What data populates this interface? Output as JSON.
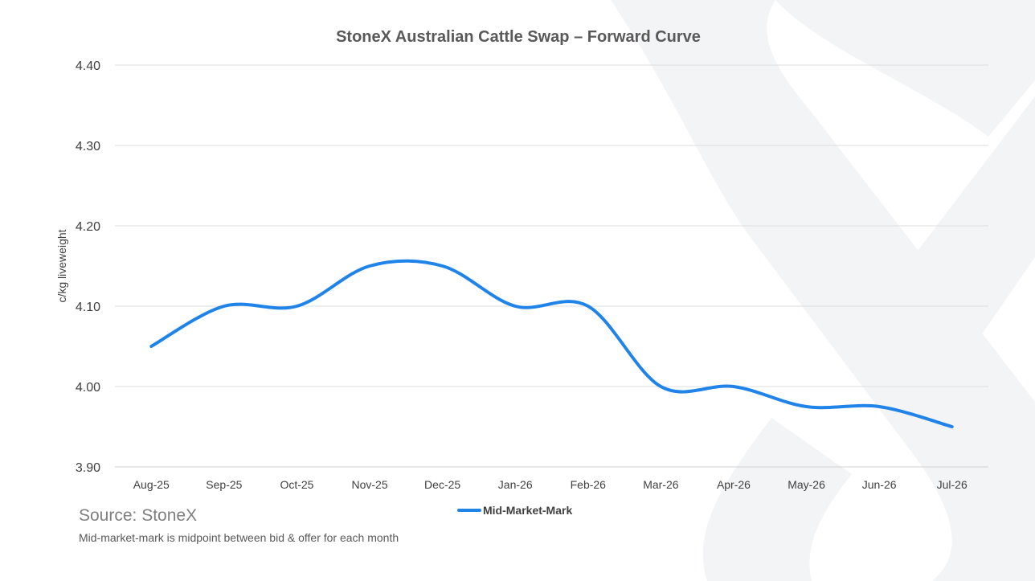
{
  "chart_data": {
    "type": "line",
    "title": "StoneX Australian Cattle Swap – Forward Curve",
    "xlabel": "",
    "ylabel": "c/kg liveweight",
    "categories": [
      "Aug-25",
      "Sep-25",
      "Oct-25",
      "Nov-25",
      "Dec-25",
      "Jan-26",
      "Feb-26",
      "Mar-26",
      "Apr-26",
      "May-26",
      "Jun-26",
      "Jul-26"
    ],
    "series": [
      {
        "name": "Mid-Market-Mark",
        "values": [
          4.05,
          4.1,
          4.1,
          4.15,
          4.15,
          4.1,
          4.1,
          4.0,
          4.0,
          3.975,
          3.975,
          3.95
        ]
      }
    ],
    "ylim": [
      3.9,
      4.4
    ],
    "yticks": [
      "4.40",
      "4.30",
      "4.20",
      "4.10",
      "4.00",
      "3.90"
    ],
    "grid": true,
    "legend_position": "bottom",
    "series_color": "#1f83e8"
  },
  "footer": {
    "source": "Source: StoneX",
    "note": "Mid-market-mark is midpoint between bid & offer for each month"
  }
}
